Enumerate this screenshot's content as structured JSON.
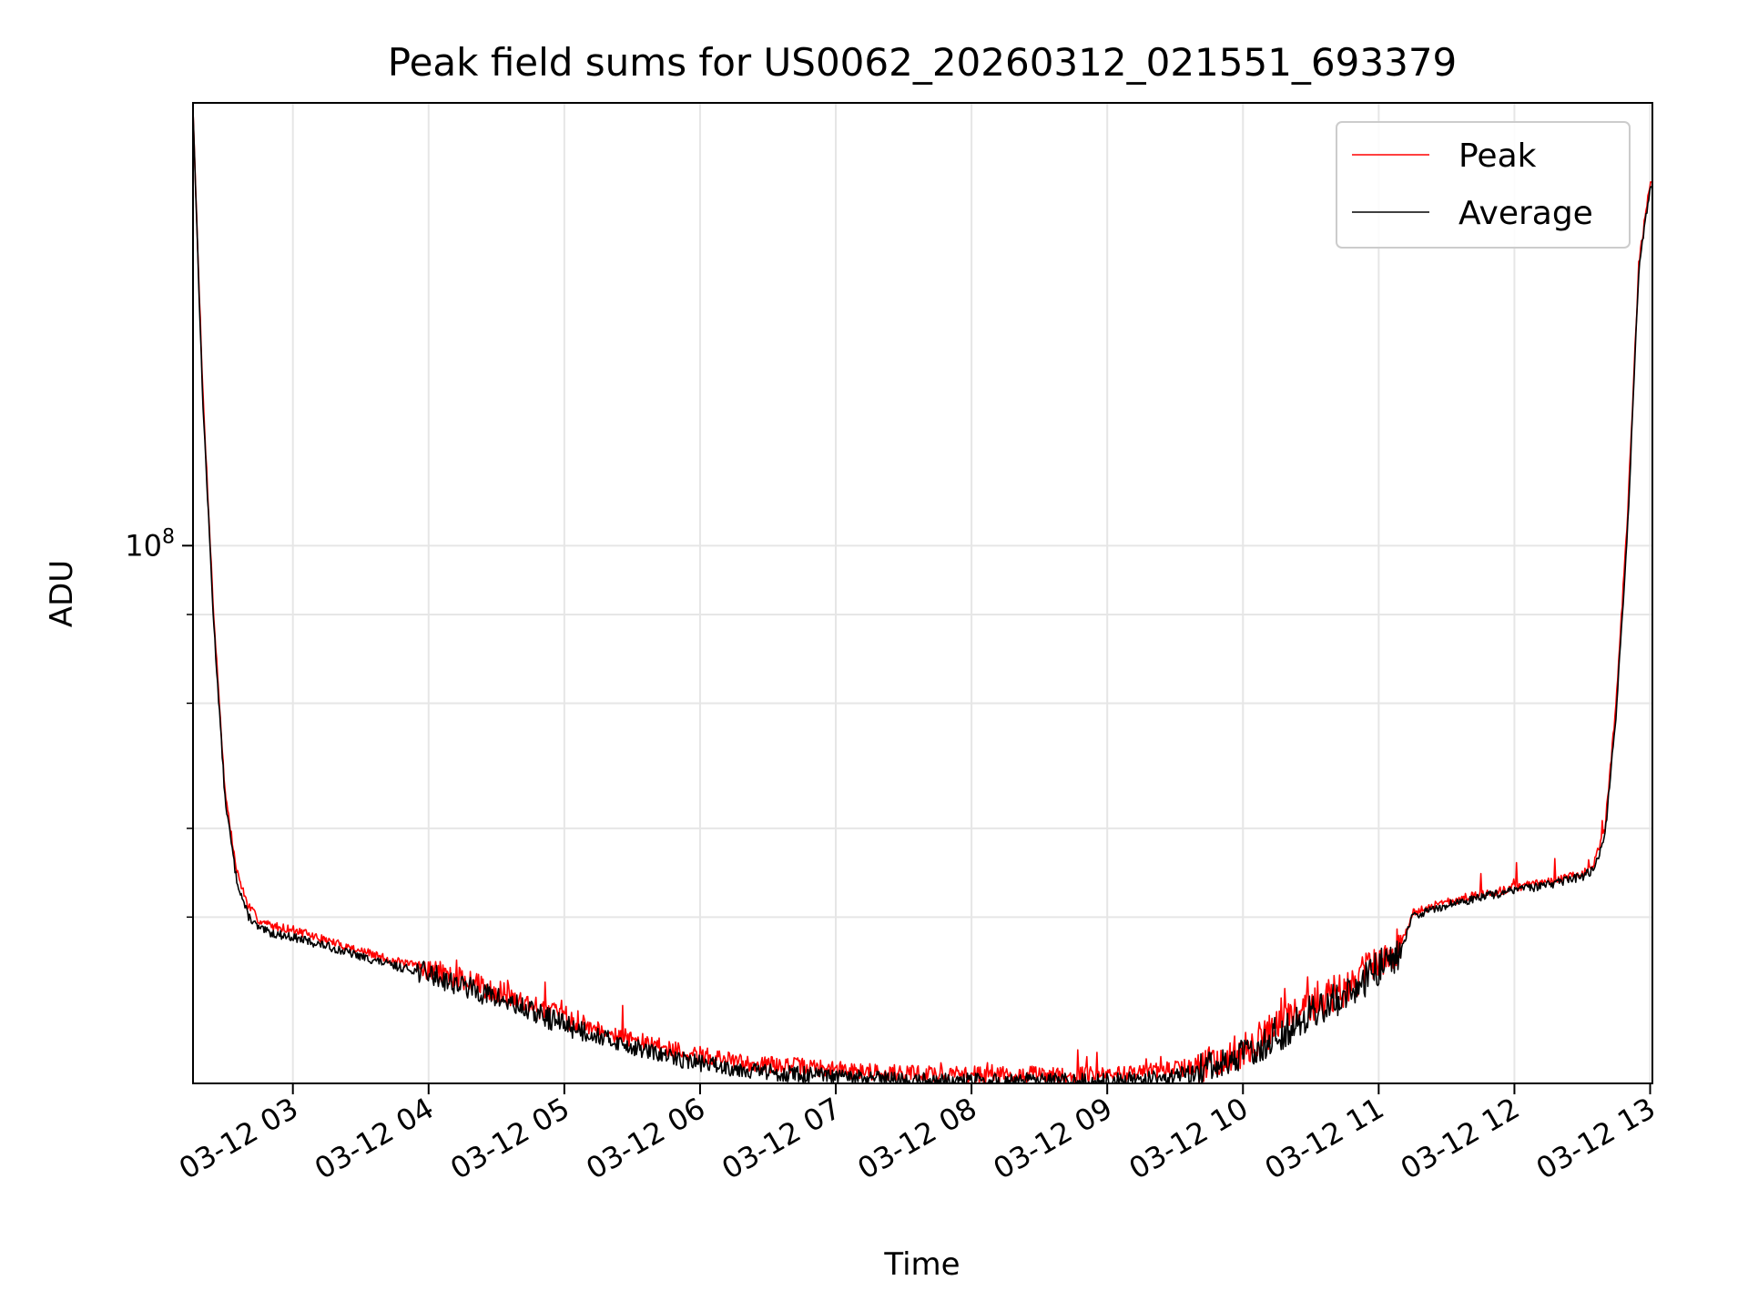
{
  "chart_data": {
    "type": "line",
    "title": "Peak field sums for US0062_20260312_021551_693379",
    "xlabel": "Time",
    "ylabel": "ADU",
    "yscale": "log",
    "xlim": [
      "2026-03-12 02:15:51",
      "2026-03-12 13:01:00"
    ],
    "ylim": [
      17500000,
      420000000
    ],
    "grid": true,
    "legend_position": "top-right",
    "x_ticks": [
      "03-12 03",
      "03-12 04",
      "03-12 05",
      "03-12 06",
      "03-12 07",
      "03-12 08",
      "03-12 09",
      "03-12 10",
      "03-12 11",
      "03-12 12",
      "03-12 13"
    ],
    "y_ticks": [
      {
        "value": 100000000,
        "base": "10",
        "exp": "8"
      }
    ],
    "y_minor_ticks": [
      30000000,
      40000000,
      60000000,
      80000000
    ],
    "series": [
      {
        "name": "Peak",
        "color": "#ff0000",
        "x": [
          "02:15:51",
          "02:20",
          "02:25",
          "02:30",
          "02:35",
          "02:40",
          "02:45",
          "02:50",
          "03:00",
          "03:15",
          "03:30",
          "03:45",
          "04:00",
          "04:15",
          "04:30",
          "04:45",
          "05:00",
          "05:15",
          "05:30",
          "05:45",
          "06:00",
          "06:15",
          "06:30",
          "06:45",
          "07:00",
          "07:15",
          "07:30",
          "07:45",
          "08:00",
          "08:15",
          "08:30",
          "08:45",
          "09:00",
          "09:15",
          "09:30",
          "09:45",
          "10:00",
          "10:15",
          "10:30",
          "10:45",
          "11:00",
          "11:10",
          "11:15",
          "11:30",
          "11:45",
          "12:00",
          "12:15",
          "12:30",
          "12:35",
          "12:40",
          "12:45",
          "12:50",
          "12:55",
          "13:00"
        ],
        "y": [
          410000000,
          170000000,
          80000000,
          45000000,
          35000000,
          31200000,
          29700000,
          29200000,
          28800000,
          27800000,
          26900000,
          26000000,
          25400000,
          24500000,
          23600000,
          22600000,
          21700000,
          20900000,
          20200000,
          19600000,
          19200000,
          18800000,
          18600000,
          18500000,
          18300000,
          18200000,
          18100000,
          18050000,
          18000000,
          18000000,
          18000000,
          18000000,
          18000000,
          18100000,
          18300000,
          18700000,
          19500000,
          21000000,
          22500000,
          23800000,
          26000000,
          27500000,
          30500000,
          31500000,
          32300000,
          33000000,
          33600000,
          34500000,
          35500000,
          40000000,
          60000000,
          110000000,
          250000000,
          325000000
        ]
      },
      {
        "name": "Average",
        "color": "#000000",
        "x": [
          "02:15:51",
          "02:20",
          "02:25",
          "02:30",
          "02:35",
          "02:40",
          "02:45",
          "02:50",
          "03:00",
          "03:15",
          "03:30",
          "03:45",
          "04:00",
          "04:15",
          "04:30",
          "04:45",
          "05:00",
          "05:15",
          "05:30",
          "05:45",
          "06:00",
          "06:15",
          "06:30",
          "06:45",
          "07:00",
          "07:15",
          "07:30",
          "07:45",
          "08:00",
          "08:15",
          "08:30",
          "08:45",
          "09:00",
          "09:15",
          "09:30",
          "09:45",
          "10:00",
          "10:15",
          "10:30",
          "10:45",
          "11:00",
          "11:10",
          "11:15",
          "11:30",
          "11:45",
          "12:00",
          "12:15",
          "12:30",
          "12:35",
          "12:40",
          "12:45",
          "12:50",
          "12:55",
          "13:00"
        ],
        "y": [
          410000000,
          165000000,
          78000000,
          44000000,
          34000000,
          30200000,
          28900000,
          28500000,
          28100000,
          27300000,
          26400000,
          25600000,
          25000000,
          24000000,
          23100000,
          22100000,
          21200000,
          20400000,
          19700000,
          19100000,
          18700000,
          18400000,
          18150000,
          18000000,
          17850000,
          17750000,
          17650000,
          17600000,
          17600000,
          17600000,
          17600000,
          17600000,
          17600000,
          17700000,
          17900000,
          18300000,
          19100000,
          20500000,
          22000000,
          23300000,
          25400000,
          27000000,
          30100000,
          31200000,
          32000000,
          32700000,
          33300000,
          34200000,
          35000000,
          39000000,
          58000000,
          105000000,
          245000000,
          320000000
        ]
      }
    ]
  }
}
